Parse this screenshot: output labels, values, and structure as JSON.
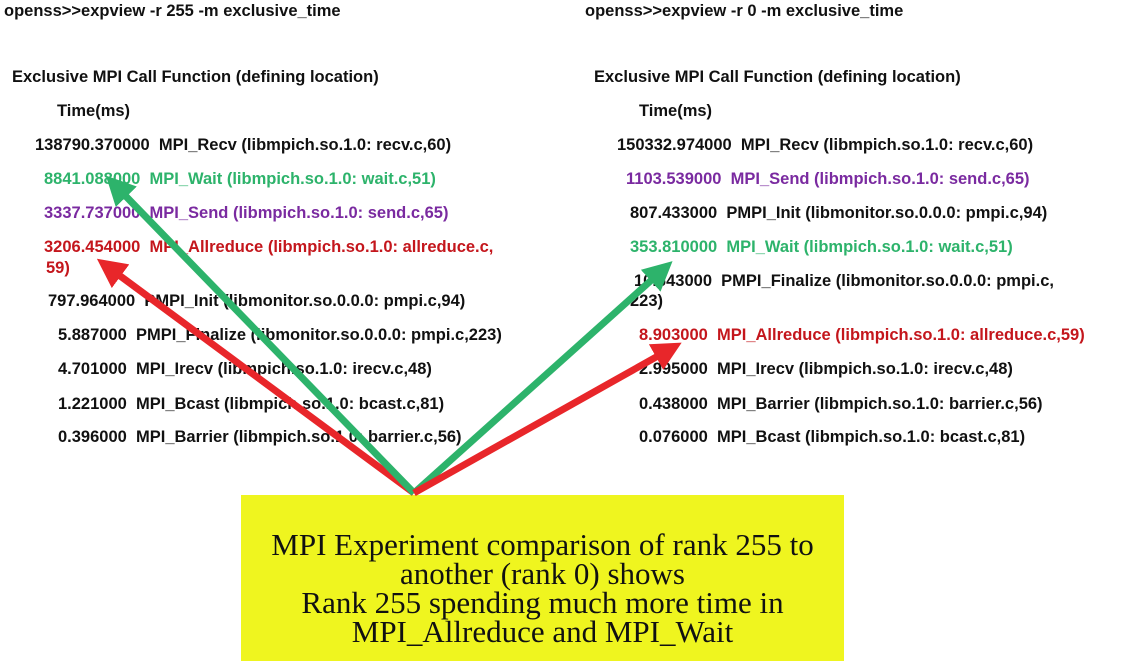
{
  "left_panel": {
    "command": "openss>>expview -r 255 -m exclusive_time",
    "header_line1": "Exclusive MPI Call  Function (defining location)",
    "header_line2": "Time(ms)",
    "rows": [
      {
        "time": "138790.370000",
        "func": "MPI_Recv (libmpich.so.1.0: recv.c,60)",
        "cont": ""
      },
      {
        "time": "8841.088000",
        "func": "MPI_Wait (libmpich.so.1.0: wait.c,51)",
        "cont": ""
      },
      {
        "time": "3337.737000",
        "func": "MPI_Send (libmpich.so.1.0: send.c,65)",
        "cont": ""
      },
      {
        "time": "3206.454000",
        "func": "MPI_Allreduce (libmpich.so.1.0: allreduce.c,",
        "cont": "59)"
      },
      {
        "time": "797.964000",
        "func": "PMPI_Init (libmonitor.so.0.0.0: pmpi.c,94)",
        "cont": ""
      },
      {
        "time": "5.887000",
        "func": "PMPI_Finalize (libmonitor.so.0.0.0: pmpi.c,223)",
        "cont": ""
      },
      {
        "time": "4.701000",
        "func": "MPI_Irecv (libmpich.so.1.0: irecv.c,48)",
        "cont": ""
      },
      {
        "time": "1.221000",
        "func": "MPI_Bcast (libmpich.so.1.0: bcast.c,81)",
        "cont": ""
      },
      {
        "time": "0.396000",
        "func": "MPI_Barrier (libmpich.so.1.0: barrier.c,56)",
        "cont": ""
      }
    ]
  },
  "right_panel": {
    "command": "openss>>expview -r 0 -m exclusive_time",
    "header_line1": "Exclusive MPI Call  Function (defining location)",
    "header_line2": "Time(ms)",
    "rows": [
      {
        "time": "150332.974000",
        "func": "MPI_Recv (libmpich.so.1.0: recv.c,60)",
        "cont": ""
      },
      {
        "time": "1103.539000",
        "func": "MPI_Send (libmpich.so.1.0: send.c,65)",
        "cont": ""
      },
      {
        "time": "807.433000",
        "func": "PMPI_Init (libmonitor.so.0.0.0: pmpi.c,94)",
        "cont": ""
      },
      {
        "time": "353.810000",
        "func": "MPI_Wait (libmpich.so.1.0: wait.c,51)",
        "cont": ""
      },
      {
        "time": "10.643000",
        "func": "PMPI_Finalize (libmonitor.so.0.0.0: pmpi.c,",
        "cont": "223)"
      },
      {
        "time": "8.903000",
        "func": "MPI_Allreduce (libmpich.so.1.0: allreduce.c,59)",
        "cont": ""
      },
      {
        "time": "2.995000",
        "func": "MPI_Irecv (libmpich.so.1.0: irecv.c,48)",
        "cont": ""
      },
      {
        "time": "0.438000",
        "func": "MPI_Barrier (libmpich.so.1.0: barrier.c,56)",
        "cont": ""
      },
      {
        "time": "0.076000",
        "func": "MPI_Bcast (libmpich.so.1.0: bcast.c,81)",
        "cont": ""
      }
    ]
  },
  "callout": {
    "line1": "MPI Experiment comparison of rank 255 to",
    "line2": "another (rank 0) shows",
    "line3": "Rank 255 spending much more time in",
    "line4": "MPI_Allreduce and MPI_Wait"
  },
  "colors": {
    "mpi_wait": "#2db36b",
    "mpi_send": "#7a2aa0",
    "mpi_allreduce": "#c4161c",
    "green_arrow": "#2db36b",
    "red_arrow": "#e8262a",
    "callout_bg": "#eff51f"
  }
}
